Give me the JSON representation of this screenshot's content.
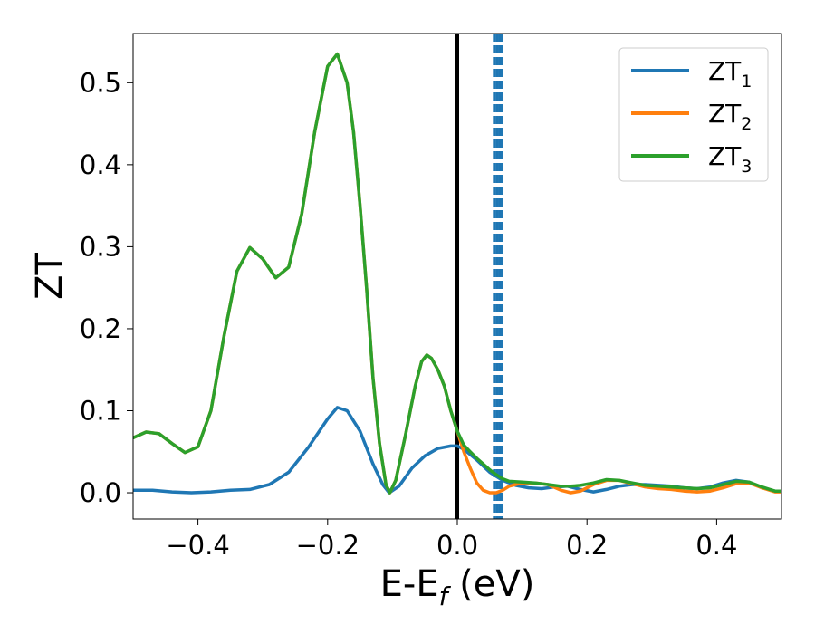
{
  "chart_data": {
    "type": "line",
    "xlabel": "E-E",
    "xlabel_sub": "f",
    "xlabel_unit": " (eV)",
    "ylabel": "ZT",
    "xlim": [
      -0.5,
      0.5
    ],
    "ylim": [
      -0.032,
      0.56
    ],
    "xticks": [
      -0.4,
      -0.2,
      0.0,
      0.2,
      0.4
    ],
    "xtick_labels": [
      "−0.4",
      "−0.2",
      "0.0",
      "0.2",
      "0.4"
    ],
    "yticks": [
      0.0,
      0.1,
      0.2,
      0.3,
      0.4,
      0.5
    ],
    "ytick_labels": [
      "0.0",
      "0.1",
      "0.2",
      "0.3",
      "0.4",
      "0.5"
    ],
    "grid": false,
    "legend_position": "top-right",
    "series": [
      {
        "name": "ZT",
        "sub": "1",
        "color": "#1f77b4",
        "points": [
          [
            -0.5,
            0.003
          ],
          [
            -0.47,
            0.003
          ],
          [
            -0.44,
            0.001
          ],
          [
            -0.41,
            0.0
          ],
          [
            -0.38,
            0.001
          ],
          [
            -0.35,
            0.003
          ],
          [
            -0.32,
            0.004
          ],
          [
            -0.29,
            0.01
          ],
          [
            -0.26,
            0.025
          ],
          [
            -0.23,
            0.055
          ],
          [
            -0.2,
            0.09
          ],
          [
            -0.185,
            0.104
          ],
          [
            -0.17,
            0.1
          ],
          [
            -0.15,
            0.075
          ],
          [
            -0.13,
            0.035
          ],
          [
            -0.115,
            0.01
          ],
          [
            -0.105,
            0.0
          ],
          [
            -0.09,
            0.008
          ],
          [
            -0.07,
            0.03
          ],
          [
            -0.05,
            0.045
          ],
          [
            -0.03,
            0.054
          ],
          [
            -0.01,
            0.057
          ],
          [
            0.0,
            0.057
          ],
          [
            0.01,
            0.053
          ],
          [
            0.03,
            0.04
          ],
          [
            0.05,
            0.025
          ],
          [
            0.07,
            0.015
          ],
          [
            0.09,
            0.009
          ],
          [
            0.11,
            0.006
          ],
          [
            0.13,
            0.005
          ],
          [
            0.15,
            0.007
          ],
          [
            0.17,
            0.008
          ],
          [
            0.19,
            0.004
          ],
          [
            0.21,
            0.001
          ],
          [
            0.23,
            0.004
          ],
          [
            0.25,
            0.008
          ],
          [
            0.27,
            0.01
          ],
          [
            0.29,
            0.01
          ],
          [
            0.31,
            0.009
          ],
          [
            0.33,
            0.008
          ],
          [
            0.35,
            0.006
          ],
          [
            0.37,
            0.005
          ],
          [
            0.39,
            0.007
          ],
          [
            0.41,
            0.012
          ],
          [
            0.43,
            0.015
          ],
          [
            0.45,
            0.013
          ],
          [
            0.47,
            0.006
          ],
          [
            0.49,
            0.002
          ],
          [
            0.5,
            0.002
          ]
        ]
      },
      {
        "name": "ZT",
        "sub": "2",
        "color": "#ff7f0e",
        "points": [
          [
            -0.5,
            0.067
          ],
          [
            -0.48,
            0.074
          ],
          [
            -0.46,
            0.072
          ],
          [
            -0.44,
            0.06
          ],
          [
            -0.42,
            0.049
          ],
          [
            -0.4,
            0.056
          ],
          [
            -0.38,
            0.1
          ],
          [
            -0.36,
            0.19
          ],
          [
            -0.34,
            0.27
          ],
          [
            -0.32,
            0.299
          ],
          [
            -0.3,
            0.285
          ],
          [
            -0.28,
            0.262
          ],
          [
            -0.26,
            0.275
          ],
          [
            -0.24,
            0.34
          ],
          [
            -0.22,
            0.44
          ],
          [
            -0.2,
            0.52
          ],
          [
            -0.185,
            0.535
          ],
          [
            -0.17,
            0.5
          ],
          [
            -0.16,
            0.44
          ],
          [
            -0.15,
            0.35
          ],
          [
            -0.14,
            0.25
          ],
          [
            -0.13,
            0.14
          ],
          [
            -0.12,
            0.06
          ],
          [
            -0.11,
            0.01
          ],
          [
            -0.104,
            0.0
          ],
          [
            -0.095,
            0.015
          ],
          [
            -0.08,
            0.07
          ],
          [
            -0.065,
            0.13
          ],
          [
            -0.055,
            0.16
          ],
          [
            -0.047,
            0.168
          ],
          [
            -0.04,
            0.164
          ],
          [
            -0.03,
            0.15
          ],
          [
            -0.02,
            0.13
          ],
          [
            -0.01,
            0.1
          ],
          [
            0.0,
            0.075
          ],
          [
            0.01,
            0.05
          ],
          [
            0.02,
            0.03
          ],
          [
            0.03,
            0.012
          ],
          [
            0.04,
            0.003
          ],
          [
            0.05,
            0.0
          ],
          [
            0.06,
            0.0
          ],
          [
            0.07,
            0.003
          ],
          [
            0.08,
            0.008
          ],
          [
            0.1,
            0.012
          ],
          [
            0.12,
            0.012
          ],
          [
            0.14,
            0.01
          ],
          [
            0.16,
            0.003
          ],
          [
            0.175,
            0.0
          ],
          [
            0.19,
            0.002
          ],
          [
            0.21,
            0.01
          ],
          [
            0.23,
            0.015
          ],
          [
            0.25,
            0.015
          ],
          [
            0.27,
            0.011
          ],
          [
            0.29,
            0.007
          ],
          [
            0.31,
            0.005
          ],
          [
            0.33,
            0.004
          ],
          [
            0.35,
            0.002
          ],
          [
            0.37,
            0.001
          ],
          [
            0.39,
            0.002
          ],
          [
            0.41,
            0.006
          ],
          [
            0.43,
            0.011
          ],
          [
            0.45,
            0.012
          ],
          [
            0.47,
            0.006
          ],
          [
            0.49,
            0.001
          ],
          [
            0.5,
            0.001
          ]
        ]
      },
      {
        "name": "ZT",
        "sub": "3",
        "color": "#2ca02c",
        "points": [
          [
            -0.5,
            0.067
          ],
          [
            -0.48,
            0.074
          ],
          [
            -0.46,
            0.072
          ],
          [
            -0.44,
            0.06
          ],
          [
            -0.42,
            0.049
          ],
          [
            -0.4,
            0.056
          ],
          [
            -0.38,
            0.1
          ],
          [
            -0.36,
            0.19
          ],
          [
            -0.34,
            0.27
          ],
          [
            -0.32,
            0.299
          ],
          [
            -0.3,
            0.285
          ],
          [
            -0.28,
            0.262
          ],
          [
            -0.26,
            0.275
          ],
          [
            -0.24,
            0.34
          ],
          [
            -0.22,
            0.44
          ],
          [
            -0.2,
            0.52
          ],
          [
            -0.185,
            0.535
          ],
          [
            -0.17,
            0.5
          ],
          [
            -0.16,
            0.44
          ],
          [
            -0.15,
            0.35
          ],
          [
            -0.14,
            0.25
          ],
          [
            -0.13,
            0.14
          ],
          [
            -0.12,
            0.06
          ],
          [
            -0.11,
            0.01
          ],
          [
            -0.104,
            0.0
          ],
          [
            -0.095,
            0.015
          ],
          [
            -0.08,
            0.07
          ],
          [
            -0.065,
            0.13
          ],
          [
            -0.055,
            0.16
          ],
          [
            -0.047,
            0.168
          ],
          [
            -0.04,
            0.164
          ],
          [
            -0.03,
            0.15
          ],
          [
            -0.02,
            0.13
          ],
          [
            -0.01,
            0.1
          ],
          [
            0.0,
            0.075
          ],
          [
            0.01,
            0.058
          ],
          [
            0.02,
            0.05
          ],
          [
            0.03,
            0.042
          ],
          [
            0.04,
            0.035
          ],
          [
            0.05,
            0.028
          ],
          [
            0.06,
            0.022
          ],
          [
            0.07,
            0.017
          ],
          [
            0.08,
            0.014
          ],
          [
            0.1,
            0.013
          ],
          [
            0.12,
            0.012
          ],
          [
            0.14,
            0.01
          ],
          [
            0.16,
            0.008
          ],
          [
            0.175,
            0.008
          ],
          [
            0.19,
            0.009
          ],
          [
            0.21,
            0.012
          ],
          [
            0.23,
            0.016
          ],
          [
            0.25,
            0.015
          ],
          [
            0.27,
            0.012
          ],
          [
            0.29,
            0.009
          ],
          [
            0.31,
            0.008
          ],
          [
            0.33,
            0.007
          ],
          [
            0.35,
            0.006
          ],
          [
            0.37,
            0.005
          ],
          [
            0.39,
            0.006
          ],
          [
            0.41,
            0.01
          ],
          [
            0.43,
            0.014
          ],
          [
            0.45,
            0.013
          ],
          [
            0.47,
            0.007
          ],
          [
            0.49,
            0.002
          ],
          [
            0.5,
            0.002
          ]
        ]
      }
    ],
    "vertical_lines": [
      {
        "x": 0.0,
        "color": "#000000",
        "style": "solid"
      },
      {
        "x": 0.057,
        "color": "#1f77b4",
        "style": "dashed"
      },
      {
        "x": 0.061,
        "color": "#1f77b4",
        "style": "dashed"
      },
      {
        "x": 0.065,
        "color": "#1f77b4",
        "style": "dashed"
      },
      {
        "x": 0.069,
        "color": "#1f77b4",
        "style": "dashed"
      }
    ]
  }
}
